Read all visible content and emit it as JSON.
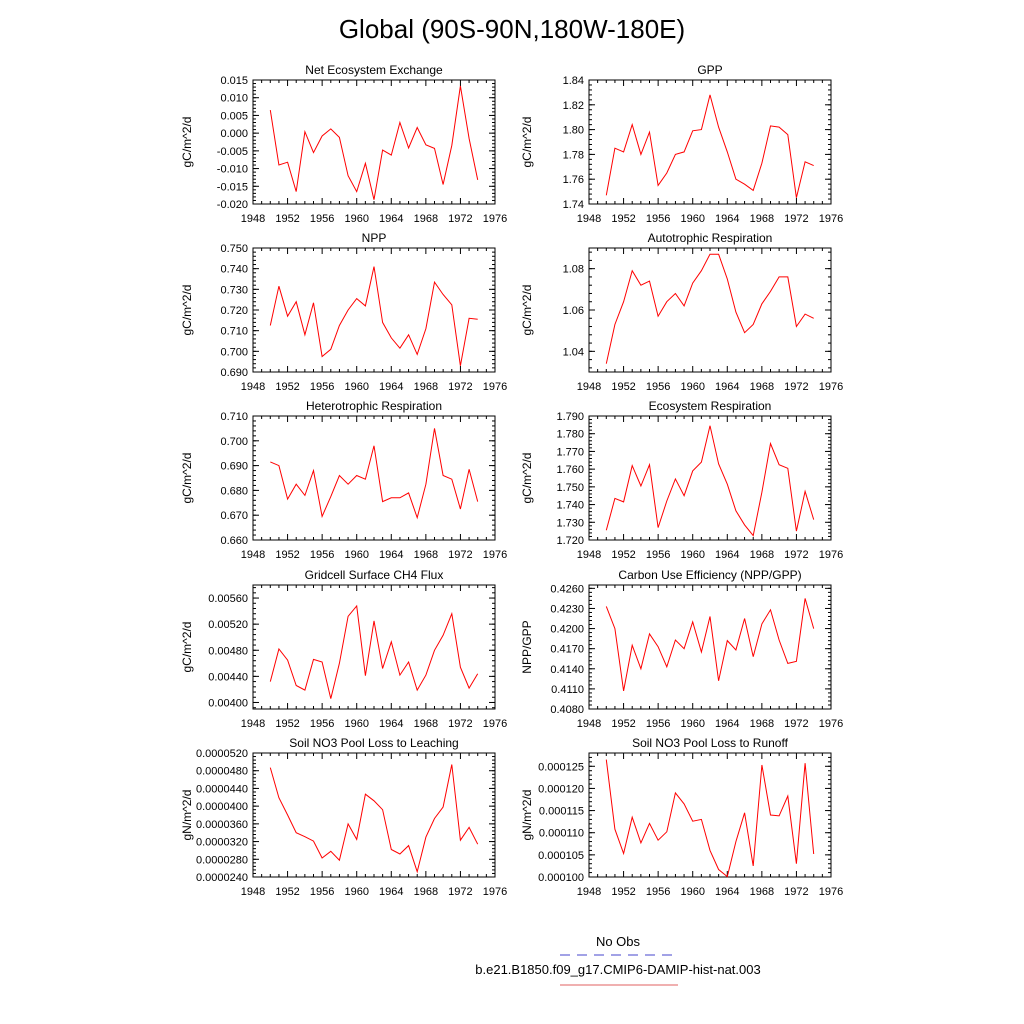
{
  "figure": {
    "title": "Global (90S-90N,180W-180E)",
    "legend": [
      {
        "label": "No Obs",
        "color": "#4444cc",
        "dash": true
      },
      {
        "label": "b.e21.B1850.f09_g17.CMIP6-DAMIP-hist-nat.003",
        "color": "#e06060",
        "dash": false
      }
    ],
    "series_color": "#ff0000"
  },
  "chart_data": [
    {
      "type": "line",
      "title": "Net Ecosystem Exchange",
      "ylabel": "gC/m^2/d",
      "xlim": [
        1948,
        1976
      ],
      "x_ticks": [
        "1948",
        "1952",
        "1956",
        "1960",
        "1964",
        "1968",
        "1972",
        "1976"
      ],
      "ylim": [
        -0.02,
        0.015
      ],
      "y_ticks": [
        "-0.020",
        "-0.015",
        "-0.010",
        "-0.005",
        "0.000",
        "0.005",
        "0.010",
        "0.015"
      ],
      "x": [
        1950,
        1951,
        1952,
        1953,
        1954,
        1955,
        1956,
        1957,
        1958,
        1959,
        1960,
        1961,
        1962,
        1963,
        1964,
        1965,
        1966,
        1967,
        1968,
        1969,
        1970,
        1971,
        1972,
        1973,
        1974
      ],
      "values": [
        0.0065,
        -0.009,
        -0.0082,
        -0.0165,
        0.0004,
        -0.0055,
        -0.0008,
        0.0012,
        -0.0012,
        -0.012,
        -0.0165,
        -0.0085,
        -0.0188,
        -0.0048,
        -0.0062,
        0.003,
        -0.0042,
        0.0016,
        -0.0033,
        -0.0043,
        -0.0145,
        -0.0035,
        0.0133,
        -0.0015,
        -0.0132
      ]
    },
    {
      "type": "line",
      "title": "GPP",
      "ylabel": "gC/m^2/d",
      "xlim": [
        1948,
        1976
      ],
      "x_ticks": [
        "1948",
        "1952",
        "1956",
        "1960",
        "1964",
        "1968",
        "1972",
        "1976"
      ],
      "ylim": [
        1.74,
        1.84
      ],
      "y_ticks": [
        "1.74",
        "1.76",
        "1.78",
        "1.80",
        "1.82",
        "1.84"
      ],
      "x": [
        1950,
        1951,
        1952,
        1953,
        1954,
        1955,
        1956,
        1957,
        1958,
        1959,
        1960,
        1961,
        1962,
        1963,
        1964,
        1965,
        1966,
        1967,
        1968,
        1969,
        1970,
        1971,
        1972,
        1973,
        1974
      ],
      "values": [
        1.747,
        1.785,
        1.782,
        1.804,
        1.78,
        1.798,
        1.755,
        1.765,
        1.78,
        1.782,
        1.799,
        1.8,
        1.828,
        1.802,
        1.782,
        1.76,
        1.756,
        1.751,
        1.773,
        1.803,
        1.802,
        1.796,
        1.745,
        1.774,
        1.771
      ]
    },
    {
      "type": "line",
      "title": "NPP",
      "ylabel": "gC/m^2/d",
      "xlim": [
        1948,
        1976
      ],
      "x_ticks": [
        "1948",
        "1952",
        "1956",
        "1960",
        "1964",
        "1968",
        "1972",
        "1976"
      ],
      "ylim": [
        0.69,
        0.75
      ],
      "y_ticks": [
        "0.690",
        "0.700",
        "0.710",
        "0.720",
        "0.730",
        "0.740",
        "0.750"
      ],
      "x": [
        1950,
        1951,
        1952,
        1953,
        1954,
        1955,
        1956,
        1957,
        1958,
        1959,
        1960,
        1961,
        1962,
        1963,
        1964,
        1965,
        1966,
        1967,
        1968,
        1969,
        1970,
        1971,
        1972,
        1973,
        1974
      ],
      "values": [
        0.7125,
        0.7315,
        0.717,
        0.724,
        0.708,
        0.7235,
        0.6975,
        0.701,
        0.7125,
        0.72,
        0.7255,
        0.722,
        0.741,
        0.714,
        0.7065,
        0.7015,
        0.708,
        0.6985,
        0.711,
        0.7335,
        0.7275,
        0.7225,
        0.693,
        0.716,
        0.7155
      ]
    },
    {
      "type": "line",
      "title": "Autotrophic Respiration",
      "ylabel": "gC/m^2/d",
      "xlim": [
        1948,
        1976
      ],
      "x_ticks": [
        "1948",
        "1952",
        "1956",
        "1960",
        "1964",
        "1968",
        "1972",
        "1976"
      ],
      "ylim": [
        1.03,
        1.09
      ],
      "y_ticks": [
        "1.04",
        "1.06",
        "1.08"
      ],
      "x": [
        1950,
        1951,
        1952,
        1953,
        1954,
        1955,
        1956,
        1957,
        1958,
        1959,
        1960,
        1961,
        1962,
        1963,
        1964,
        1965,
        1966,
        1967,
        1968,
        1969,
        1970,
        1971,
        1972,
        1973,
        1974
      ],
      "values": [
        1.034,
        1.053,
        1.064,
        1.079,
        1.072,
        1.074,
        1.057,
        1.064,
        1.068,
        1.062,
        1.073,
        1.079,
        1.087,
        1.087,
        1.075,
        1.059,
        1.049,
        1.053,
        1.063,
        1.069,
        1.076,
        1.076,
        1.052,
        1.058,
        1.056
      ]
    },
    {
      "type": "line",
      "title": "Heterotrophic Respiration",
      "ylabel": "gC/m^2/d",
      "xlim": [
        1948,
        1976
      ],
      "x_ticks": [
        "1948",
        "1952",
        "1956",
        "1960",
        "1964",
        "1968",
        "1972",
        "1976"
      ],
      "ylim": [
        0.66,
        0.71
      ],
      "y_ticks": [
        "0.660",
        "0.670",
        "0.680",
        "0.690",
        "0.700",
        "0.710"
      ],
      "x": [
        1950,
        1951,
        1952,
        1953,
        1954,
        1955,
        1956,
        1957,
        1958,
        1959,
        1960,
        1961,
        1962,
        1963,
        1964,
        1965,
        1966,
        1967,
        1968,
        1969,
        1970,
        1971,
        1972,
        1973,
        1974
      ],
      "values": [
        0.6915,
        0.69,
        0.6765,
        0.6825,
        0.678,
        0.688,
        0.6695,
        0.6775,
        0.686,
        0.6825,
        0.686,
        0.6845,
        0.698,
        0.6755,
        0.677,
        0.677,
        0.679,
        0.669,
        0.6825,
        0.705,
        0.686,
        0.6845,
        0.6725,
        0.6885,
        0.6755
      ]
    },
    {
      "type": "line",
      "title": "Ecosystem Respiration",
      "ylabel": "gC/m^2/d",
      "xlim": [
        1948,
        1976
      ],
      "x_ticks": [
        "1948",
        "1952",
        "1956",
        "1960",
        "1964",
        "1968",
        "1972",
        "1976"
      ],
      "ylim": [
        1.72,
        1.79
      ],
      "y_ticks": [
        "1.720",
        "1.730",
        "1.740",
        "1.750",
        "1.760",
        "1.770",
        "1.780",
        "1.790"
      ],
      "x": [
        1950,
        1951,
        1952,
        1953,
        1954,
        1955,
        1956,
        1957,
        1958,
        1959,
        1960,
        1961,
        1962,
        1963,
        1964,
        1965,
        1966,
        1967,
        1968,
        1969,
        1970,
        1971,
        1972,
        1973,
        1974
      ],
      "values": [
        1.7255,
        1.7435,
        1.7415,
        1.762,
        1.7505,
        1.7625,
        1.727,
        1.742,
        1.7545,
        1.745,
        1.759,
        1.764,
        1.7845,
        1.763,
        1.7515,
        1.7365,
        1.7285,
        1.7225,
        1.747,
        1.7745,
        1.7625,
        1.7605,
        1.725,
        1.7475,
        1.7315
      ]
    },
    {
      "type": "line",
      "title": "Gridcell Surface CH4 Flux",
      "ylabel": "gC/m^2/d",
      "xlim": [
        1948,
        1976
      ],
      "x_ticks": [
        "1948",
        "1952",
        "1956",
        "1960",
        "1964",
        "1968",
        "1972",
        "1976"
      ],
      "ylim": [
        0.0039,
        0.0058
      ],
      "y_ticks": [
        "0.00400",
        "0.00440",
        "0.00480",
        "0.00520",
        "0.00560"
      ],
      "x": [
        1950,
        1951,
        1952,
        1953,
        1954,
        1955,
        1956,
        1957,
        1958,
        1959,
        1960,
        1961,
        1962,
        1963,
        1964,
        1965,
        1966,
        1967,
        1968,
        1969,
        1970,
        1971,
        1972,
        1973,
        1974
      ],
      "values": [
        0.00432,
        0.00482,
        0.00465,
        0.00426,
        0.00419,
        0.00466,
        0.00462,
        0.00406,
        0.0046,
        0.00532,
        0.00548,
        0.00441,
        0.00525,
        0.00452,
        0.00493,
        0.00442,
        0.00462,
        0.00419,
        0.00442,
        0.0048,
        0.00503,
        0.00536,
        0.00454,
        0.00422,
        0.00444
      ]
    },
    {
      "type": "line",
      "title": "Carbon Use Efficiency (NPP/GPP)",
      "ylabel": "NPP/GPP",
      "xlim": [
        1948,
        1976
      ],
      "x_ticks": [
        "1948",
        "1952",
        "1956",
        "1960",
        "1964",
        "1968",
        "1972",
        "1976"
      ],
      "ylim": [
        0.408,
        0.4265
      ],
      "y_ticks": [
        "0.4080",
        "0.4110",
        "0.4140",
        "0.4170",
        "0.4200",
        "0.4230",
        "0.4260"
      ],
      "x": [
        1950,
        1951,
        1952,
        1953,
        1954,
        1955,
        1956,
        1957,
        1958,
        1959,
        1960,
        1961,
        1962,
        1963,
        1964,
        1965,
        1966,
        1967,
        1968,
        1969,
        1970,
        1971,
        1972,
        1973,
        1974
      ],
      "values": [
        0.4233,
        0.42,
        0.4107,
        0.4175,
        0.414,
        0.4192,
        0.4173,
        0.4143,
        0.4183,
        0.417,
        0.421,
        0.4165,
        0.4218,
        0.4122,
        0.4182,
        0.4168,
        0.4215,
        0.4158,
        0.4207,
        0.4228,
        0.4183,
        0.4148,
        0.4151,
        0.4245,
        0.42
      ]
    },
    {
      "type": "line",
      "title": "Soil NO3 Pool Loss to Leaching",
      "ylabel": "gN/m^2/d",
      "xlim": [
        1948,
        1976
      ],
      "x_ticks": [
        "1948",
        "1952",
        "1956",
        "1960",
        "1964",
        "1968",
        "1972",
        "1976"
      ],
      "ylim": [
        2.4e-05,
        5.2e-05
      ],
      "y_ticks": [
        "0.0000240",
        "0.0000280",
        "0.0000320",
        "0.0000360",
        "0.0000400",
        "0.0000440",
        "0.0000480",
        "0.0000520"
      ],
      "x": [
        1950,
        1951,
        1952,
        1953,
        1954,
        1955,
        1956,
        1957,
        1958,
        1959,
        1960,
        1961,
        1962,
        1963,
        1964,
        1965,
        1966,
        1967,
        1968,
        1969,
        1970,
        1971,
        1972,
        1973,
        1974
      ],
      "values": [
        4.87e-05,
        4.19e-05,
        3.8e-05,
        3.4e-05,
        3.31e-05,
        3.21e-05,
        2.83e-05,
        2.98e-05,
        2.78e-05,
        3.6e-05,
        3.25e-05,
        4.27e-05,
        4.12e-05,
        3.92e-05,
        3.02e-05,
        2.92e-05,
        3.11e-05,
        2.52e-05,
        3.3e-05,
        3.72e-05,
        3.98e-05,
        4.94e-05,
        3.23e-05,
        3.52e-05,
        3.14e-05
      ]
    },
    {
      "type": "line",
      "title": "Soil NO3 Pool Loss to Runoff",
      "ylabel": "gN/m^2/d",
      "xlim": [
        1948,
        1976
      ],
      "x_ticks": [
        "1948",
        "1952",
        "1956",
        "1960",
        "1964",
        "1968",
        "1972",
        "1976"
      ],
      "ylim": [
        0.0001,
        0.000128
      ],
      "y_ticks": [
        "0.000100",
        "0.000105",
        "0.000110",
        "0.000115",
        "0.000120",
        "0.000125"
      ],
      "x": [
        1950,
        1951,
        1952,
        1953,
        1954,
        1955,
        1956,
        1957,
        1958,
        1959,
        1960,
        1961,
        1962,
        1963,
        1964,
        1965,
        1966,
        1967,
        1968,
        1969,
        1970,
        1971,
        1972,
        1973,
        1974
      ],
      "values": [
        0.0001265,
        0.0001108,
        0.0001053,
        0.0001135,
        0.0001077,
        0.0001121,
        0.0001083,
        0.0001102,
        0.000119,
        0.0001165,
        0.0001126,
        0.000113,
        0.000106,
        0.0001017,
        0.0001001,
        0.000108,
        0.0001145,
        0.0001025,
        0.0001253,
        0.000114,
        0.0001138,
        0.0001183,
        0.000103,
        0.0001257,
        0.0001052
      ]
    }
  ]
}
